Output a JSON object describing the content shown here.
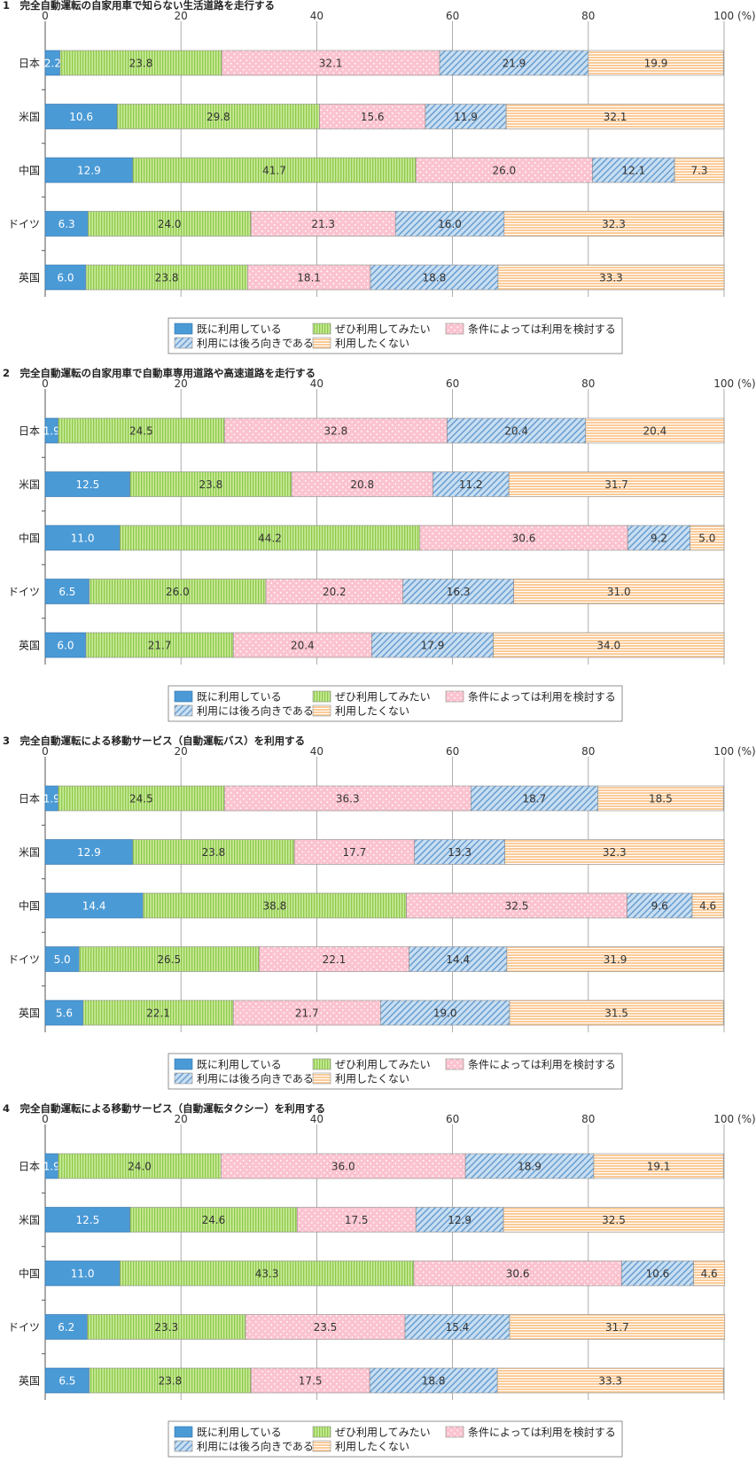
{
  "legend_labels": [
    "既に利用している",
    "ぜひ利用してみたい",
    "条件によっては利用を検討する",
    "利用には後ろ向きである",
    "利用したくない"
  ],
  "colors": {
    "already": "#4a9ad6",
    "want": "#b7e07f",
    "conditional": "#fbc3cf",
    "negative": "#b4d3ee",
    "no": "#fbc490"
  },
  "chart_data": [
    {
      "type": "bar",
      "orientation": "horizontal",
      "stacked": true,
      "title": "1　完全自動運転の自家用車で知らない生活道路を走行する",
      "x_ticks": [
        "0",
        "20",
        "40",
        "60",
        "80",
        "100 (%)"
      ],
      "xlim": [
        0,
        100
      ],
      "categories": [
        "日本",
        "米国",
        "中国",
        "ドイツ",
        "英国"
      ],
      "series": [
        {
          "name": "既に利用している",
          "values": [
            2.2,
            10.6,
            12.9,
            6.3,
            6.0
          ]
        },
        {
          "name": "ぜひ利用してみたい",
          "values": [
            23.8,
            29.8,
            41.7,
            24.0,
            23.8
          ]
        },
        {
          "name": "条件によっては利用を検討する",
          "values": [
            32.1,
            15.6,
            26.0,
            21.3,
            18.1
          ]
        },
        {
          "name": "利用には後ろ向きである",
          "values": [
            21.9,
            11.9,
            12.1,
            16.0,
            18.8
          ]
        },
        {
          "name": "利用したくない",
          "values": [
            19.9,
            32.1,
            7.3,
            32.3,
            33.3
          ]
        }
      ]
    },
    {
      "type": "bar",
      "orientation": "horizontal",
      "stacked": true,
      "title": "2　完全自動運転の自家用車で自動車専用道路や高速道路を走行する",
      "x_ticks": [
        "0",
        "20",
        "40",
        "60",
        "80",
        "100 (%)"
      ],
      "xlim": [
        0,
        100
      ],
      "categories": [
        "日本",
        "米国",
        "中国",
        "ドイツ",
        "英国"
      ],
      "series": [
        {
          "name": "既に利用している",
          "values": [
            1.9,
            12.5,
            11.0,
            6.5,
            6.0
          ]
        },
        {
          "name": "ぜひ利用してみたい",
          "values": [
            24.5,
            23.8,
            44.2,
            26.0,
            21.7
          ]
        },
        {
          "name": "条件によっては利用を検討する",
          "values": [
            32.8,
            20.8,
            30.6,
            20.2,
            20.4
          ]
        },
        {
          "name": "利用には後ろ向きである",
          "values": [
            20.4,
            11.2,
            9.2,
            16.3,
            17.9
          ]
        },
        {
          "name": "利用したくない",
          "values": [
            20.4,
            31.7,
            5.0,
            31.0,
            34.0
          ]
        }
      ]
    },
    {
      "type": "bar",
      "orientation": "horizontal",
      "stacked": true,
      "title": "3　完全自動運転による移動サービス（自動運転バス）を利用する",
      "x_ticks": [
        "0",
        "20",
        "40",
        "60",
        "80",
        "100 (%)"
      ],
      "xlim": [
        0,
        100
      ],
      "categories": [
        "日本",
        "米国",
        "中国",
        "ドイツ",
        "英国"
      ],
      "series": [
        {
          "name": "既に利用している",
          "values": [
            1.9,
            12.9,
            14.4,
            5.0,
            5.6
          ]
        },
        {
          "name": "ぜひ利用してみたい",
          "values": [
            24.5,
            23.8,
            38.8,
            26.5,
            22.1
          ]
        },
        {
          "name": "条件によっては利用を検討する",
          "values": [
            36.3,
            17.7,
            32.5,
            22.1,
            21.7
          ]
        },
        {
          "name": "利用には後ろ向きである",
          "values": [
            18.7,
            13.3,
            9.6,
            14.4,
            19.0
          ]
        },
        {
          "name": "利用したくない",
          "values": [
            18.5,
            32.3,
            4.6,
            31.9,
            31.5
          ]
        }
      ]
    },
    {
      "type": "bar",
      "orientation": "horizontal",
      "stacked": true,
      "title": "4　完全自動運転による移動サービス（自動運転タクシー）を利用する",
      "x_ticks": [
        "0",
        "20",
        "40",
        "60",
        "80",
        "100 (%)"
      ],
      "xlim": [
        0,
        100
      ],
      "categories": [
        "日本",
        "米国",
        "中国",
        "ドイツ",
        "英国"
      ],
      "series": [
        {
          "name": "既に利用している",
          "values": [
            1.9,
            12.5,
            11.0,
            6.2,
            6.5
          ]
        },
        {
          "name": "ぜひ利用してみたい",
          "values": [
            24.0,
            24.6,
            43.3,
            23.3,
            23.8
          ]
        },
        {
          "name": "条件によっては利用を検討する",
          "values": [
            36.0,
            17.5,
            30.6,
            23.5,
            17.5
          ]
        },
        {
          "name": "利用には後ろ向きである",
          "values": [
            18.9,
            12.9,
            10.6,
            15.4,
            18.8
          ]
        },
        {
          "name": "利用したくない",
          "values": [
            19.1,
            32.5,
            4.6,
            31.7,
            33.3
          ]
        }
      ]
    }
  ]
}
